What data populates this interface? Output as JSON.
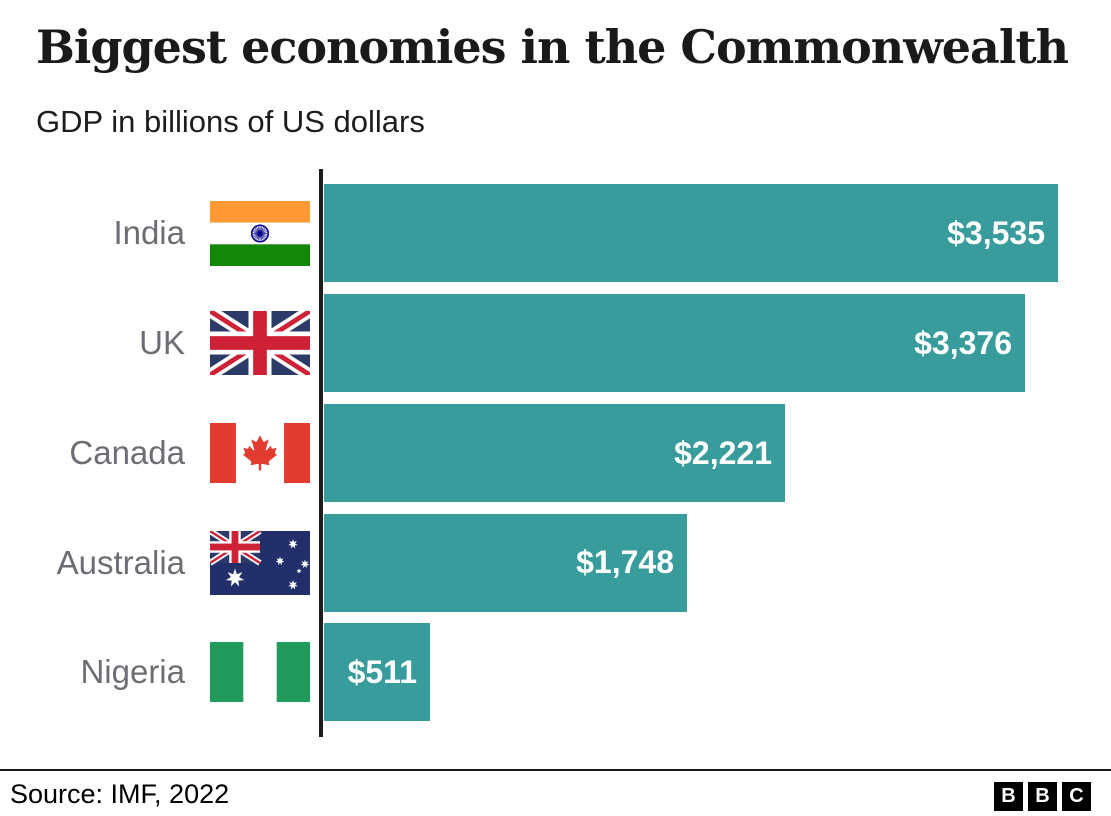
{
  "header": {
    "title": "Biggest economies in the Commonwealth",
    "subtitle": "GDP in billions of US dollars"
  },
  "chart_data": {
    "type": "bar",
    "orientation": "horizontal",
    "title": "Biggest economies in the Commonwealth",
    "unit_label": "GDP in billions of US dollars",
    "categories": [
      "India",
      "UK",
      "Canada",
      "Australia",
      "Nigeria"
    ],
    "values": [
      3535,
      3376,
      2221,
      1748,
      511
    ],
    "value_labels": [
      "$3,535",
      "$3,376",
      "$2,221",
      "$1,748",
      "$511"
    ],
    "flags": [
      "india-flag",
      "uk-flag",
      "canada-flag",
      "australia-flag",
      "nigeria-flag"
    ],
    "xlim": [
      0,
      3535
    ],
    "grid": false,
    "legend": false,
    "bar_color": "#389b9c",
    "value_label_color": "#ffffff",
    "category_label_color": "#6d6d73",
    "axis_line_color": "#1d1d1d"
  },
  "footer": {
    "source": "Source: IMF, 2022",
    "divider_color": "#1a1a1a"
  },
  "logo": {
    "name": "bbc-logo",
    "letters": [
      "B",
      "B",
      "C"
    ]
  }
}
